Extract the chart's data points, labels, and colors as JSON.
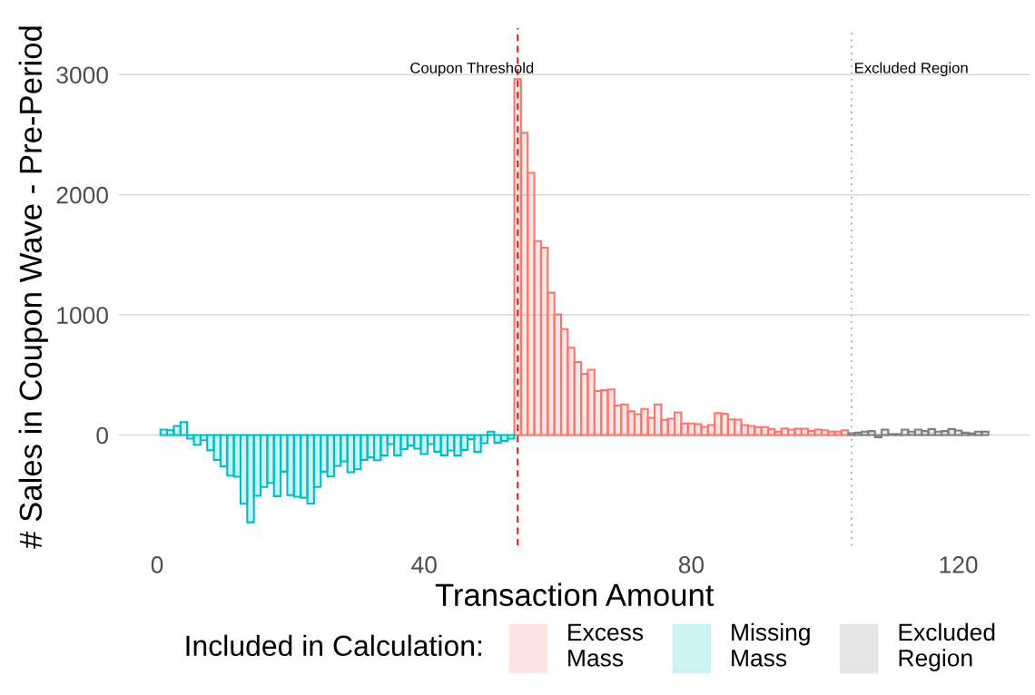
{
  "chart_data": {
    "type": "bar",
    "xlabel": "Transaction Amount",
    "ylabel": "# Sales in Coupon Wave - Pre-Period",
    "legend_title": "Included in Calculation:",
    "xlim": [
      -5.7,
      130.7
    ],
    "xticks": [
      0,
      40,
      80,
      120
    ],
    "ylim": [
      -920,
      3390
    ],
    "yticks": [
      0,
      1000,
      2000,
      3000
    ],
    "grid": "y",
    "legend": "bottom",
    "series": [
      {
        "name": "Excess\nMass",
        "color": "#f8766d",
        "x": [
          54,
          55,
          56,
          57,
          58,
          59,
          60,
          61,
          62,
          63,
          64,
          65,
          66,
          67,
          68,
          69,
          70,
          71,
          72,
          73,
          74,
          75,
          76,
          77,
          78,
          79,
          80,
          81,
          82,
          83,
          84,
          85,
          86,
          87,
          88,
          89,
          90,
          91,
          92,
          93,
          94,
          95,
          96,
          97,
          98,
          99,
          100,
          101,
          102,
          103
        ],
        "values": [
          2962,
          2516,
          2183,
          1614,
          1559,
          1185,
          1005,
          882,
          727,
          607,
          509,
          544,
          366,
          373,
          380,
          245,
          255,
          197,
          174,
          217,
          144,
          255,
          126,
          136,
          189,
          96,
          96,
          91,
          68,
          83,
          182,
          177,
          130,
          128,
          83,
          76,
          66,
          66,
          50,
          28,
          55,
          45,
          53,
          53,
          33,
          45,
          40,
          28,
          28,
          40
        ]
      },
      {
        "name": "Missing\nMass",
        "color": "#00bfc4",
        "x": [
          1,
          2,
          3,
          4,
          5,
          6,
          7,
          8,
          9,
          10,
          11,
          12,
          13,
          14,
          15,
          16,
          17,
          18,
          19,
          20,
          21,
          22,
          23,
          24,
          25,
          26,
          27,
          28,
          29,
          30,
          31,
          32,
          33,
          34,
          35,
          36,
          37,
          38,
          39,
          40,
          41,
          42,
          43,
          44,
          45,
          46,
          47,
          48,
          49,
          50,
          51,
          52,
          53
        ],
        "values": [
          45,
          40,
          76,
          108,
          -30,
          -81,
          -43,
          -126,
          -207,
          -260,
          -338,
          -348,
          -572,
          -726,
          -506,
          -433,
          -398,
          -509,
          -305,
          -501,
          -514,
          -522,
          -570,
          -433,
          -305,
          -346,
          -257,
          -219,
          -310,
          -285,
          -207,
          -186,
          -209,
          -171,
          -76,
          -169,
          -118,
          -88,
          -113,
          -159,
          -76,
          -139,
          -169,
          -129,
          -171,
          -124,
          -35,
          -141,
          -68,
          28,
          -63,
          -48,
          -30
        ]
      },
      {
        "name": "Excluded\nRegion",
        "color": "#7f7f7f",
        "x": [
          104,
          105,
          106,
          107,
          108,
          109,
          110,
          111,
          112,
          113,
          114,
          115,
          116,
          117,
          118,
          119,
          120,
          121,
          122,
          123,
          124
        ],
        "values": [
          15,
          20,
          28,
          33,
          -18,
          45,
          8,
          8,
          45,
          28,
          45,
          33,
          50,
          28,
          33,
          50,
          38,
          20,
          15,
          28,
          28
        ]
      }
    ],
    "ref_lines": [
      {
        "axis": "x",
        "value": 54,
        "color": "#ff0000",
        "line_style": "dashed",
        "label": "Coupon Threshold"
      },
      {
        "axis": "x",
        "value": 104,
        "color": "#a6a6a6",
        "line_style": "dotted",
        "label": "Excluded Region"
      }
    ]
  }
}
